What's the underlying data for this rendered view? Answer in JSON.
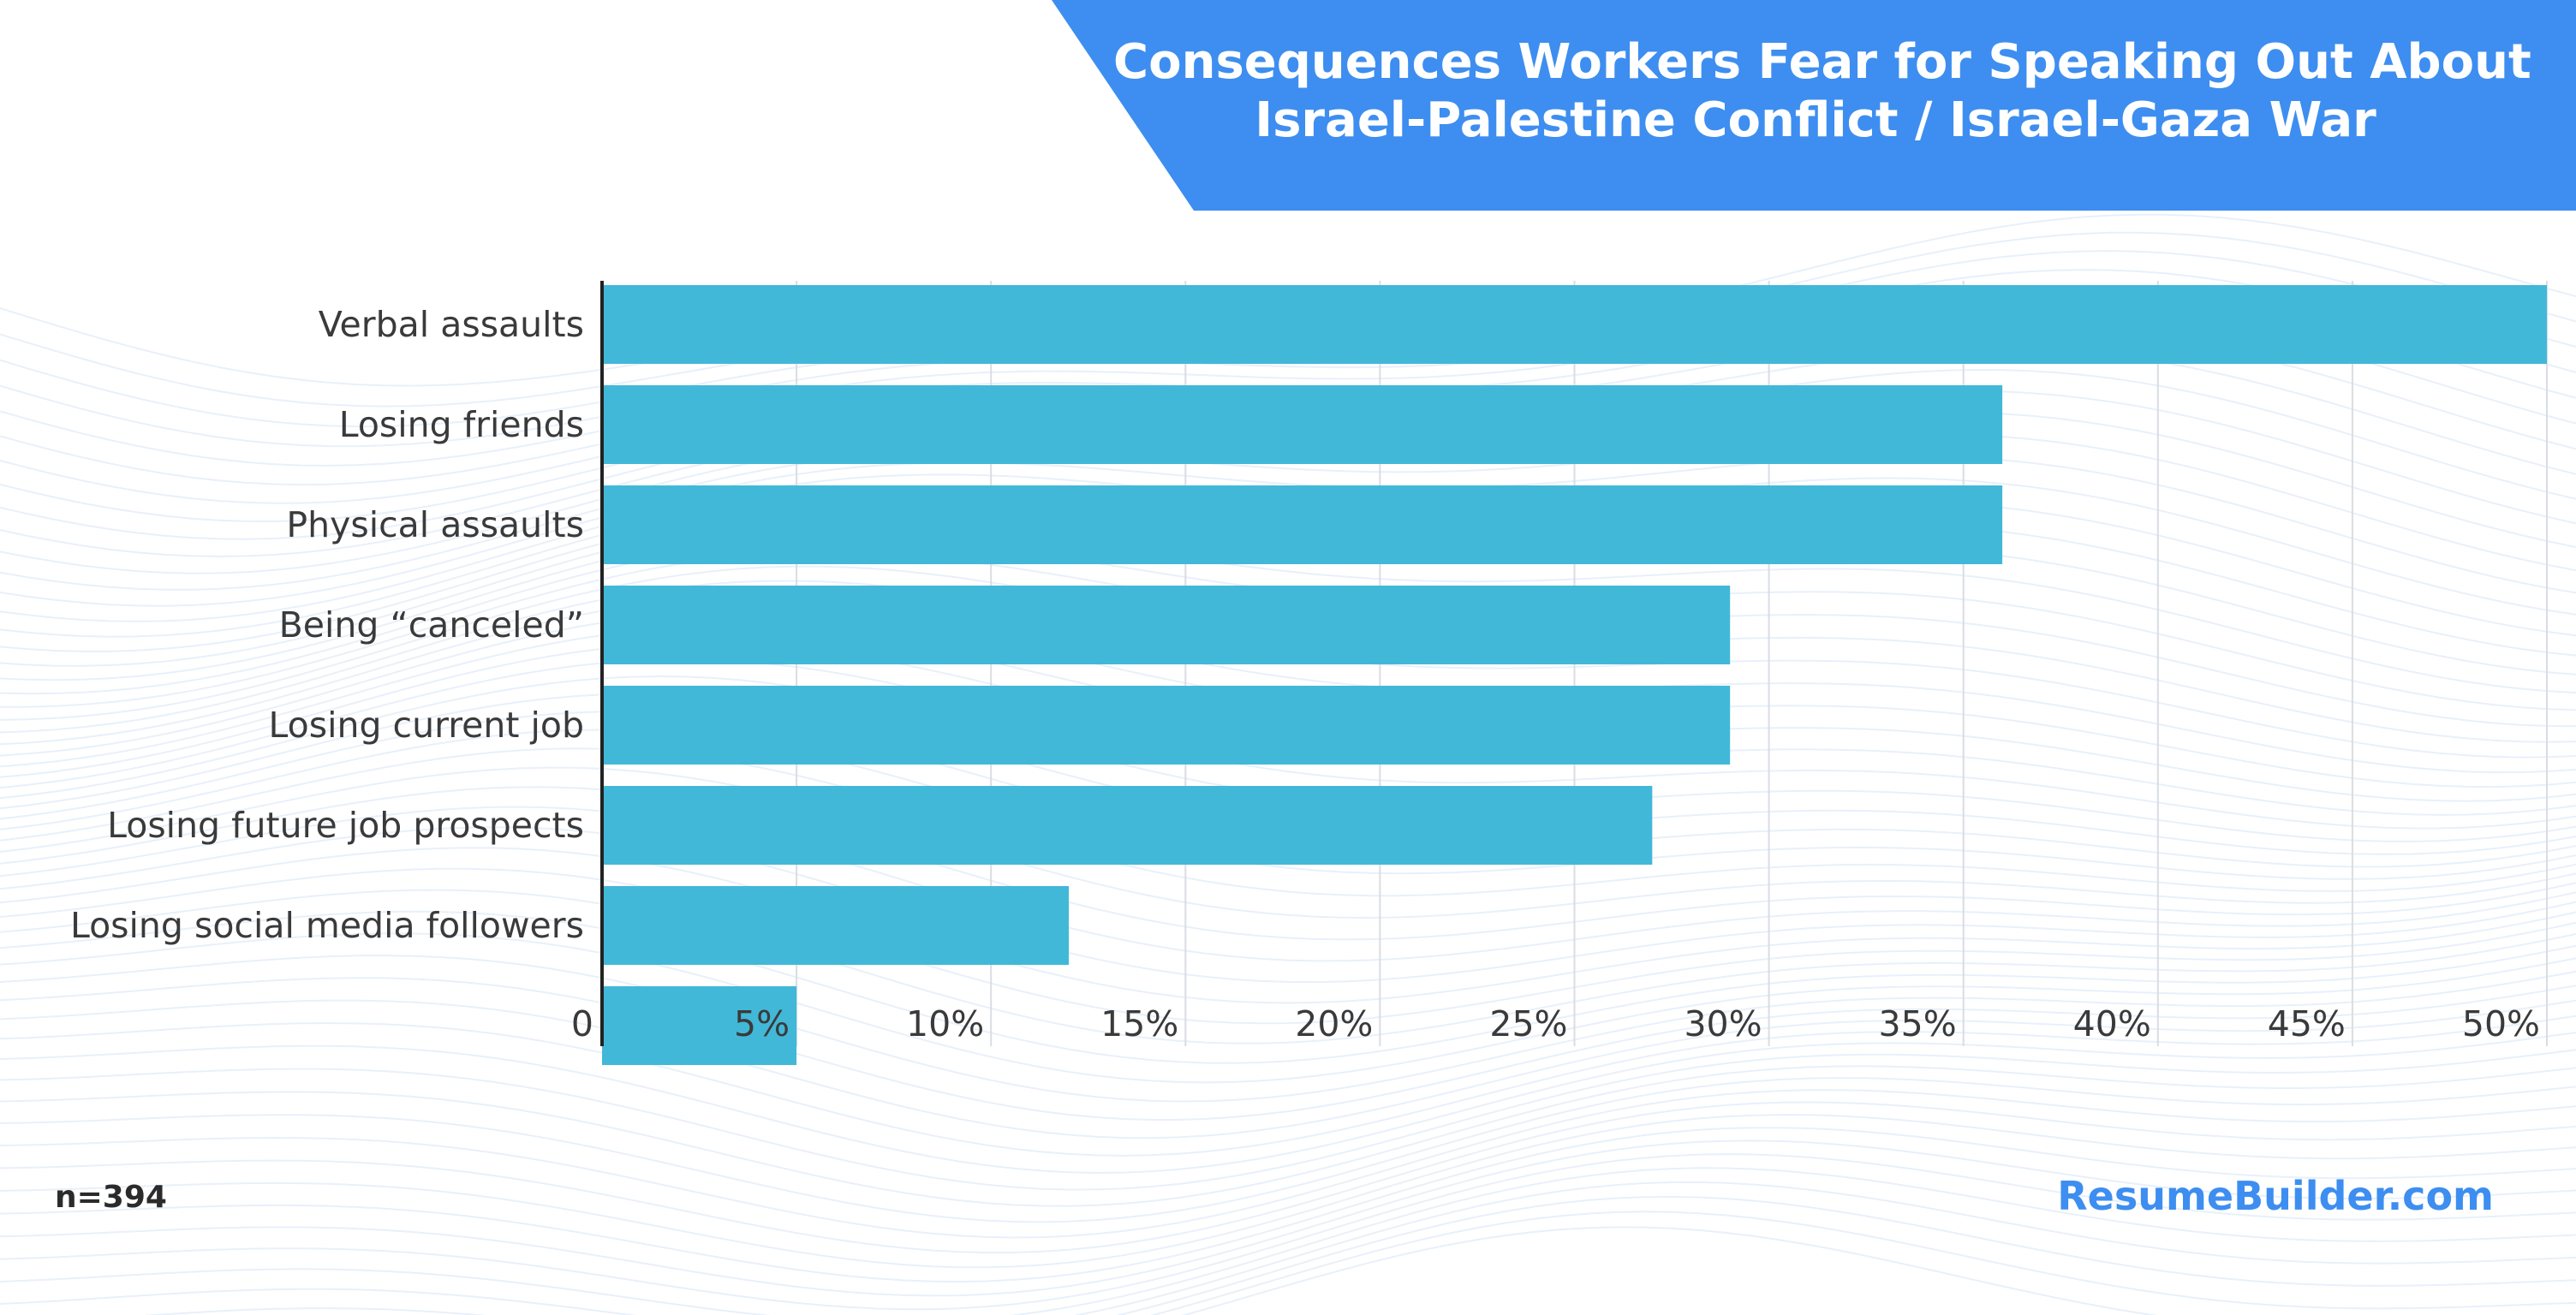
{
  "header": {
    "title_line1": "Consequences Workers Fear for Speaking Out About",
    "title_line2": "Israel-Palestine Conflict / Israel-Gaza War",
    "banner_color": "#3d8ef0"
  },
  "footer": {
    "sample_size": "n=394",
    "brand": "ResumeBuilder.com"
  },
  "chart_data": {
    "type": "bar",
    "orientation": "horizontal",
    "categories": [
      "Verbal assaults",
      "Losing friends",
      "Physical assaults",
      "Being “canceled”",
      "Losing current job",
      "Losing future job prospects",
      "Losing social media followers",
      ""
    ],
    "values": [
      50,
      36,
      36,
      29,
      29,
      27,
      12,
      5
    ],
    "xlim": [
      0,
      50
    ],
    "ticks": [
      0,
      5,
      10,
      15,
      20,
      25,
      30,
      35,
      40,
      45,
      50
    ],
    "tick_labels": [
      "0",
      "5%",
      "10%",
      "15%",
      "20%",
      "25%",
      "30%",
      "35%",
      "40%",
      "45%",
      "50%"
    ],
    "grid": true,
    "bar_color": "#42b8d8",
    "grid_color": "#d9dde3",
    "axis_color": "#222222"
  }
}
